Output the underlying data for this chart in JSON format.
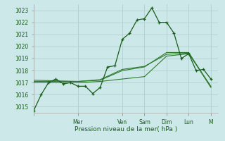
{
  "title": "",
  "xlabel": "Pression niveau de la mer( hPa )",
  "ylabel": "",
  "bg_color": "#cce8e8",
  "grid_color": "#aacccc",
  "line_color": "#1a5c1a",
  "line_color2": "#2d7a2d",
  "ylim": [
    1014.5,
    1023.5
  ],
  "yticks": [
    1015,
    1016,
    1017,
    1018,
    1019,
    1020,
    1021,
    1022,
    1023
  ],
  "day_labels": [
    "",
    "Mer",
    "Ven",
    "Sam",
    "Dim",
    "Lun",
    "M"
  ],
  "day_positions": [
    0,
    12,
    24,
    30,
    36,
    42,
    48
  ],
  "xlim": [
    0,
    50
  ],
  "series1_x": [
    0,
    2,
    4,
    6,
    8,
    10,
    12,
    14,
    16,
    18,
    20,
    22,
    24,
    26,
    28,
    30,
    32,
    34,
    36,
    38,
    40,
    42,
    44,
    46,
    48
  ],
  "series1_y": [
    1014.7,
    1016.0,
    1017.0,
    1017.3,
    1016.9,
    1017.0,
    1016.7,
    1016.7,
    1016.1,
    1016.6,
    1018.3,
    1018.4,
    1020.6,
    1021.1,
    1022.2,
    1022.3,
    1023.2,
    1022.0,
    1022.0,
    1021.1,
    1019.0,
    1019.4,
    1018.0,
    1018.1,
    1017.3
  ],
  "series2_x": [
    0,
    6,
    12,
    18,
    24,
    30,
    36,
    42,
    48
  ],
  "series2_y": [
    1017.0,
    1017.0,
    1017.0,
    1017.1,
    1017.3,
    1017.5,
    1019.2,
    1019.4,
    1016.7
  ],
  "series3_x": [
    0,
    6,
    12,
    18,
    24,
    30,
    36,
    42,
    48
  ],
  "series3_y": [
    1017.1,
    1017.1,
    1017.1,
    1017.2,
    1018.0,
    1018.3,
    1019.5,
    1019.5,
    1016.65
  ],
  "series4_x": [
    0,
    6,
    12,
    18,
    24,
    30,
    36,
    42,
    48
  ],
  "series4_y": [
    1017.2,
    1017.15,
    1017.1,
    1017.25,
    1018.1,
    1018.35,
    1019.35,
    1019.45,
    1016.6
  ]
}
